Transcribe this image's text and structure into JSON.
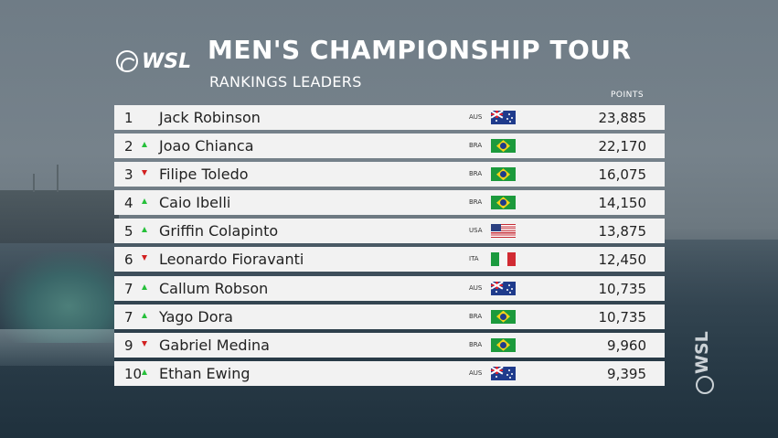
{
  "header": {
    "brand": "WSL",
    "title": "MEN'S CHAMPIONSHIP TOUR",
    "subtitle": "RANKINGS LEADERS"
  },
  "table": {
    "points_header": "POINTS",
    "rows": [
      {
        "rank": "1",
        "trend": "none",
        "name": "Jack Robinson",
        "country": "AUS",
        "flag": "aus",
        "points": "23,885"
      },
      {
        "rank": "2",
        "trend": "up",
        "name": "Joao Chianca",
        "country": "BRA",
        "flag": "bra",
        "points": "22,170"
      },
      {
        "rank": "3",
        "trend": "down",
        "name": "Filipe Toledo",
        "country": "BRA",
        "flag": "bra",
        "points": "16,075"
      },
      {
        "rank": "4",
        "trend": "up",
        "name": "Caio Ibelli",
        "country": "BRA",
        "flag": "bra",
        "points": "14,150"
      },
      {
        "rank": "5",
        "trend": "up",
        "name": "Griffin Colapinto",
        "country": "USA",
        "flag": "usa",
        "points": "13,875"
      },
      {
        "rank": "6",
        "trend": "down",
        "name": "Leonardo Fioravanti",
        "country": "ITA",
        "flag": "ita",
        "points": "12,450"
      },
      {
        "rank": "7",
        "trend": "up",
        "name": "Callum Robson",
        "country": "AUS",
        "flag": "aus",
        "points": "10,735"
      },
      {
        "rank": "7",
        "trend": "up",
        "name": "Yago Dora",
        "country": "BRA",
        "flag": "bra",
        "points": "10,735"
      },
      {
        "rank": "9",
        "trend": "down",
        "name": "Gabriel Medina",
        "country": "BRA",
        "flag": "bra",
        "points": "9,960"
      },
      {
        "rank": "10",
        "trend": "up",
        "name": "Ethan Ewing",
        "country": "AUS",
        "flag": "aus",
        "points": "9,395"
      }
    ]
  },
  "watermark": {
    "text": "WSL"
  },
  "colors": {
    "trend_up": "#26c03a",
    "trend_down": "#d22020",
    "row_bg": "#f2f2f2"
  }
}
